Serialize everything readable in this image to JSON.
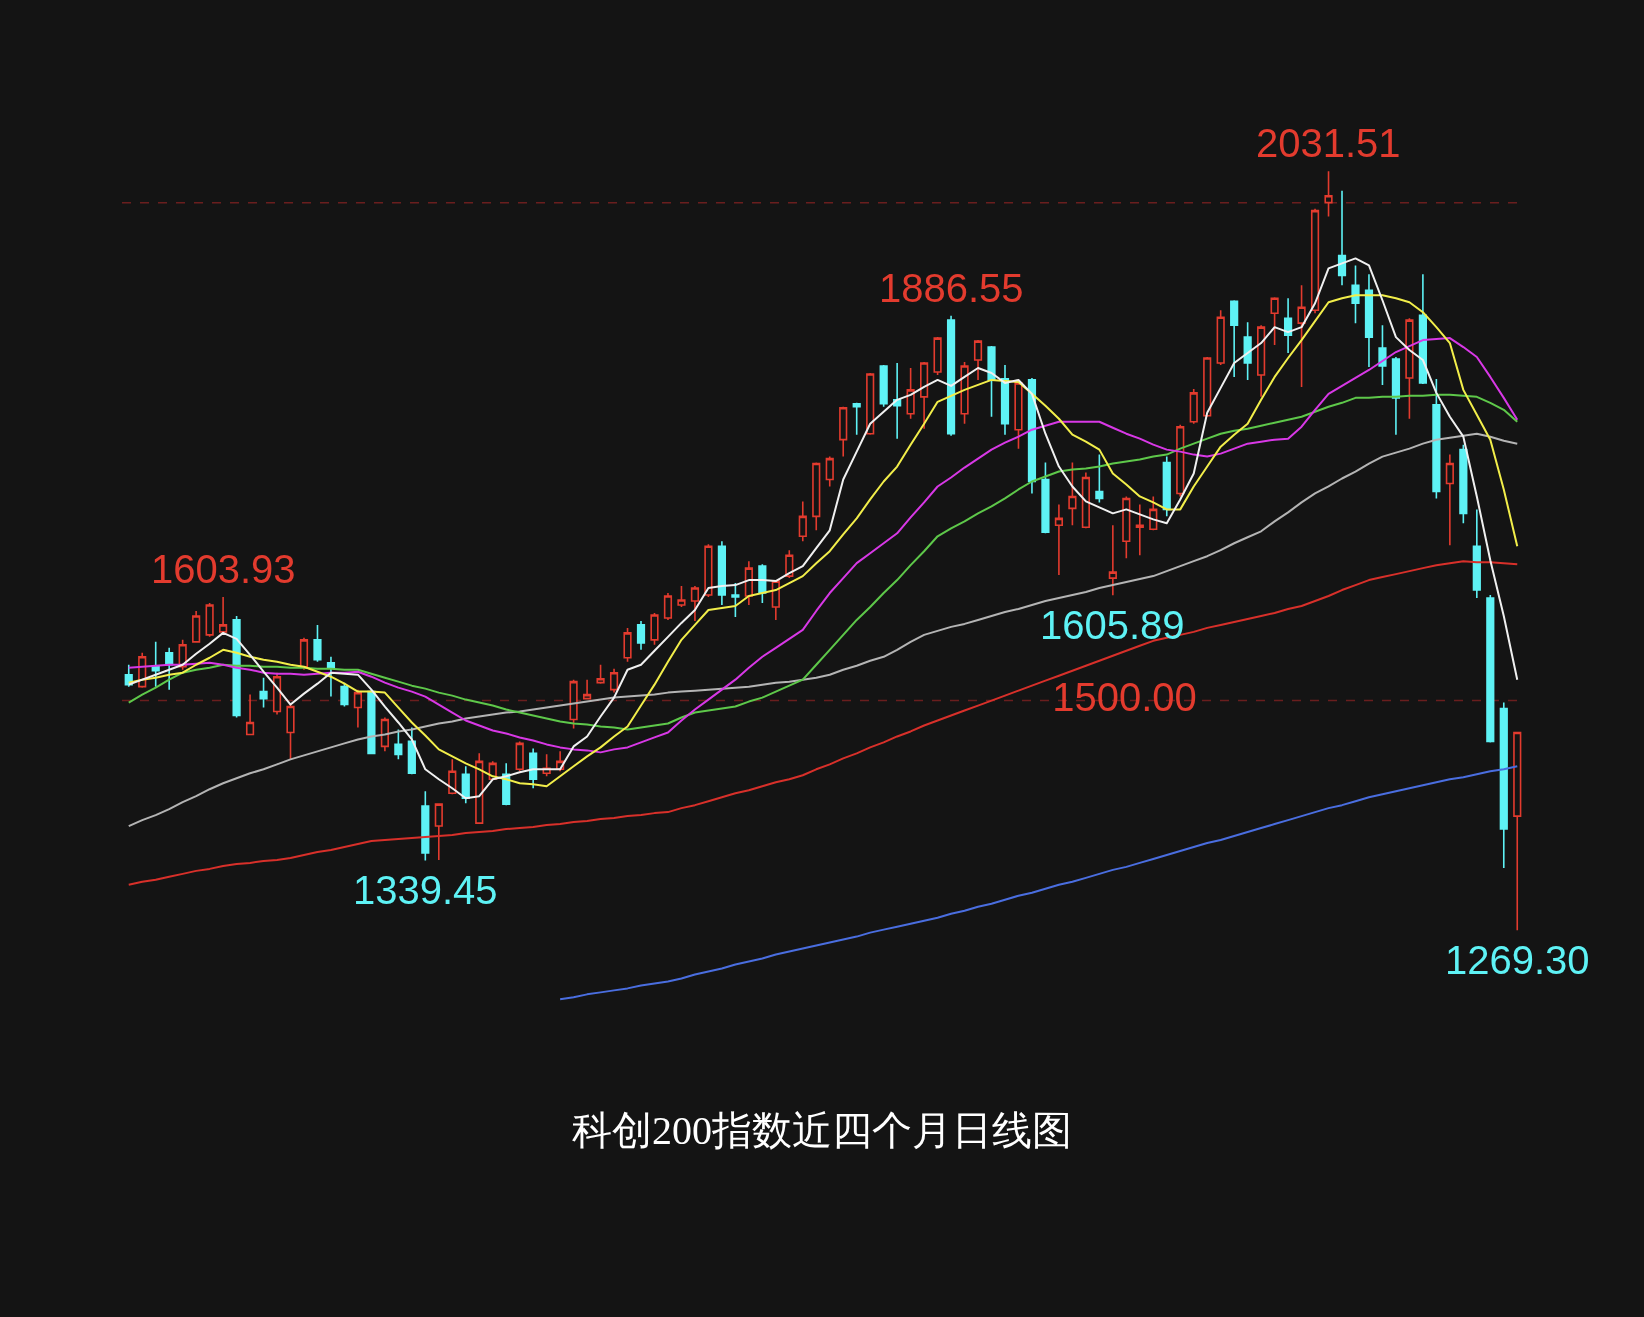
{
  "chart_data": {
    "type": "candlestick",
    "title": "科创200指数近四个月日线图",
    "categories": [
      null,
      null,
      null,
      null,
      null,
      null,
      null,
      null,
      null,
      null,
      null,
      null,
      null,
      null,
      null,
      null,
      null,
      null,
      null,
      null,
      null,
      null,
      null,
      null,
      null,
      null,
      null,
      null,
      null,
      null,
      null,
      null,
      null,
      null,
      null,
      null,
      null,
      null,
      null,
      null,
      null,
      null,
      null,
      null,
      null,
      null,
      null,
      null,
      null,
      null,
      null,
      null,
      null,
      null,
      null,
      null,
      null,
      null,
      null,
      null,
      null,
      null,
      null,
      null,
      null,
      null,
      null,
      null,
      null,
      null,
      null,
      null,
      null,
      null,
      null,
      null,
      null,
      null,
      null,
      null,
      null,
      null,
      null,
      null,
      null,
      null,
      null,
      null,
      null,
      null,
      null,
      null,
      null,
      null,
      null,
      null,
      null,
      null,
      null,
      null,
      null,
      null,
      null,
      null
    ],
    "ohlc": [
      [
        1526,
        1536,
        1514,
        1516
      ],
      [
        1514,
        1548,
        1513,
        1544
      ],
      [
        1535,
        1559,
        1514,
        1530
      ],
      [
        1548,
        1553,
        1511,
        1536
      ],
      [
        1534,
        1561,
        1531,
        1556
      ],
      [
        1559,
        1590,
        1558,
        1585
      ],
      [
        1566,
        1598,
        1564,
        1596
      ],
      [
        1569,
        1603.93,
        1566,
        1576
      ],
      [
        1581,
        1585,
        1483,
        1485
      ],
      [
        1466,
        1506,
        1466,
        1478
      ],
      [
        1509,
        1523,
        1493,
        1502
      ],
      [
        1489,
        1528,
        1486,
        1524
      ],
      [
        1468,
        1496,
        1441,
        1494
      ],
      [
        1534,
        1563,
        1531,
        1561
      ],
      [
        1561,
        1576,
        1539,
        1541
      ],
      [
        1538,
        1544,
        1504,
        1533
      ],
      [
        1514,
        1518,
        1494,
        1496
      ],
      [
        1493,
        1511,
        1473,
        1508
      ],
      [
        1509,
        1511,
        1446,
        1447
      ],
      [
        1454,
        1483,
        1449,
        1481
      ],
      [
        1456,
        1471,
        1441,
        1446
      ],
      [
        1459,
        1473,
        1426,
        1427
      ],
      [
        1394,
        1409,
        1339.45,
        1347
      ],
      [
        1374,
        1397,
        1340,
        1396
      ],
      [
        1407,
        1441,
        1406,
        1429
      ],
      [
        1426,
        1434,
        1397,
        1402
      ],
      [
        1377,
        1447,
        1376,
        1439
      ],
      [
        1421,
        1439,
        1420,
        1437
      ],
      [
        1426,
        1437,
        1395,
        1396
      ],
      [
        1431,
        1459,
        1429,
        1457
      ],
      [
        1447,
        1452,
        1412,
        1421
      ],
      [
        1427,
        1446,
        1424,
        1432
      ],
      [
        1431,
        1449,
        1429,
        1439
      ],
      [
        1481,
        1521,
        1472,
        1519
      ],
      [
        1502,
        1521,
        1501,
        1506
      ],
      [
        1518,
        1536,
        1517,
        1522
      ],
      [
        1511,
        1532,
        1508,
        1528
      ],
      [
        1543,
        1573,
        1539,
        1568
      ],
      [
        1576,
        1580,
        1551,
        1558
      ],
      [
        1561,
        1588,
        1556,
        1586
      ],
      [
        1583,
        1608,
        1581,
        1605
      ],
      [
        1596,
        1615,
        1594,
        1601
      ],
      [
        1600,
        1615,
        1580,
        1613
      ],
      [
        1606,
        1657,
        1604,
        1655
      ],
      [
        1655,
        1660,
        1596,
        1606
      ],
      [
        1606,
        1618,
        1584,
        1604
      ],
      [
        1605,
        1640,
        1596,
        1633
      ],
      [
        1635,
        1637,
        1598,
        1608
      ],
      [
        1594,
        1621,
        1581,
        1620
      ],
      [
        1625,
        1651,
        1623,
        1646
      ],
      [
        1665,
        1700,
        1660,
        1685
      ],
      [
        1685,
        1739,
        1671,
        1738
      ],
      [
        1722,
        1745,
        1715,
        1743
      ],
      [
        1762,
        1795,
        1745,
        1794
      ],
      [
        1798,
        1799,
        1767,
        1795
      ],
      [
        1768,
        1829,
        1767,
        1828
      ],
      [
        1836,
        1837,
        1795,
        1798
      ],
      [
        1802,
        1839,
        1763,
        1796
      ],
      [
        1788,
        1834,
        1783,
        1812
      ],
      [
        1805,
        1840,
        1773,
        1839
      ],
      [
        1830,
        1865,
        1827,
        1864
      ],
      [
        1882,
        1886.55,
        1766,
        1768
      ],
      [
        1788,
        1840,
        1778,
        1836
      ],
      [
        1842,
        1862,
        1822,
        1861
      ],
      [
        1855,
        1856,
        1785,
        1822
      ],
      [
        1823,
        1837,
        1767,
        1778
      ],
      [
        1772,
        1822,
        1753,
        1819
      ],
      [
        1822,
        1824,
        1708,
        1720
      ],
      [
        1722,
        1739,
        1668,
        1669
      ],
      [
        1676,
        1697,
        1626,
        1683
      ],
      [
        1693,
        1739,
        1676,
        1705
      ],
      [
        1674,
        1729,
        1673,
        1724
      ],
      [
        1710,
        1747,
        1699,
        1703
      ],
      [
        1623,
        1676,
        1605.89,
        1629
      ],
      [
        1660,
        1705,
        1643,
        1703
      ],
      [
        1674,
        1697,
        1646,
        1676
      ],
      [
        1672,
        1705,
        1671,
        1692
      ],
      [
        1739,
        1745,
        1685,
        1692
      ],
      [
        1708,
        1777,
        1705,
        1775
      ],
      [
        1780,
        1813,
        1778,
        1809
      ],
      [
        1786,
        1845,
        1785,
        1844
      ],
      [
        1839,
        1892,
        1837,
        1885
      ],
      [
        1901,
        1902,
        1825,
        1877
      ],
      [
        1865,
        1880,
        1822,
        1839
      ],
      [
        1827,
        1877,
        1805,
        1875
      ],
      [
        1889,
        1905,
        1857,
        1904
      ],
      [
        1884,
        1904,
        1849,
        1867
      ],
      [
        1879,
        1917,
        1815,
        1895
      ],
      [
        1892,
        1994,
        1889,
        1992
      ],
      [
        2000,
        2031.51,
        1986,
        2007
      ],
      [
        1947,
        2012,
        1917,
        1927
      ],
      [
        1917,
        1937,
        1879,
        1899
      ],
      [
        1912,
        1928,
        1835,
        1865
      ],
      [
        1854,
        1877,
        1817,
        1836
      ],
      [
        1843,
        1845,
        1767,
        1804
      ],
      [
        1824,
        1884,
        1783,
        1882
      ],
      [
        1887,
        1928,
        1818,
        1819
      ],
      [
        1797,
        1823,
        1703,
        1710
      ],
      [
        1718,
        1747,
        1656,
        1738
      ],
      [
        1752,
        1757,
        1678,
        1688
      ],
      [
        1655,
        1692,
        1603,
        1611
      ],
      [
        1603,
        1606,
        1458,
        1459
      ],
      [
        1492,
        1498,
        1332,
        1371
      ],
      [
        1384,
        1468,
        1269.3,
        1468
      ]
    ],
    "colors": [
      "#5ef2f5",
      "#e33b2e",
      "#5ef2f5",
      "#5ef2f5",
      "#e33b2e",
      "#e33b2e",
      "#e33b2e",
      "#e33b2e",
      "#5ef2f5",
      "#e33b2e",
      "#5ef2f5",
      "#e33b2e",
      "#e33b2e",
      "#e33b2e",
      "#5ef2f5",
      "#5ef2f5",
      "#5ef2f5",
      "#e33b2e",
      "#5ef2f5",
      "#e33b2e",
      "#5ef2f5",
      "#5ef2f5",
      "#5ef2f5",
      "#e33b2e",
      "#e33b2e",
      "#5ef2f5",
      "#e33b2e",
      "#e33b2e",
      "#5ef2f5",
      "#e33b2e",
      "#5ef2f5",
      "#e33b2e",
      "#e33b2e",
      "#e33b2e",
      "#e33b2e",
      "#e33b2e",
      "#e33b2e",
      "#e33b2e",
      "#5ef2f5",
      "#e33b2e",
      "#e33b2e",
      "#e33b2e",
      "#e33b2e",
      "#e33b2e",
      "#5ef2f5",
      "#5ef2f5",
      "#e33b2e",
      "#5ef2f5",
      "#e33b2e",
      "#e33b2e",
      "#e33b2e",
      "#e33b2e",
      "#e33b2e",
      "#e33b2e",
      "#5ef2f5",
      "#e33b2e",
      "#5ef2f5",
      "#5ef2f5",
      "#e33b2e",
      "#e33b2e",
      "#e33b2e",
      "#5ef2f5",
      "#e33b2e",
      "#e33b2e",
      "#5ef2f5",
      "#5ef2f5",
      "#e33b2e",
      "#5ef2f5",
      "#5ef2f5",
      "#e33b2e",
      "#e33b2e",
      "#e33b2e",
      "#5ef2f5",
      "#e33b2e",
      "#e33b2e",
      "#e33b2e",
      "#e33b2e",
      "#5ef2f5",
      "#e33b2e",
      "#e33b2e",
      "#e33b2e",
      "#e33b2e",
      "#5ef2f5",
      "#5ef2f5",
      "#e33b2e",
      "#e33b2e",
      "#5ef2f5",
      "#e33b2e",
      "#e33b2e",
      "#e33b2e",
      "#5ef2f5",
      "#5ef2f5",
      "#5ef2f5",
      "#5ef2f5",
      "#5ef2f5",
      "#e33b2e",
      "#5ef2f5",
      "#5ef2f5",
      "#e33b2e",
      "#5ef2f5",
      "#5ef2f5",
      "#5ef2f5",
      "#5ef2f5",
      "#e33b2e"
    ],
    "series": [
      {
        "type": "line",
        "color": "#4a6ee0",
        "values": [
          null,
          null,
          null,
          null,
          null,
          null,
          null,
          null,
          null,
          null,
          null,
          null,
          null,
          null,
          null,
          null,
          null,
          null,
          null,
          null,
          null,
          null,
          null,
          null,
          null,
          null,
          null,
          null,
          null,
          null,
          null,
          null,
          1200,
          1202,
          1205,
          1207,
          1209,
          1211,
          1214,
          1216,
          1218,
          1221,
          1225,
          1228,
          1231,
          1235,
          1238,
          1241,
          1245,
          1248,
          1251,
          1254,
          1257,
          1260,
          1263,
          1267,
          1270,
          1273,
          1276,
          1279,
          1282,
          1286,
          1289,
          1293,
          1296,
          1300,
          1304,
          1307,
          1311,
          1315,
          1318,
          1322,
          1326,
          1330,
          1333,
          1337,
          1341,
          1345,
          1349,
          1353,
          1357,
          1360,
          1364,
          1368,
          1372,
          1376,
          1380,
          1384,
          1388,
          1392,
          1395,
          1399,
          1403,
          1406,
          1409,
          1412,
          1415,
          1418,
          1421,
          1423,
          1426,
          1429,
          1431,
          1434
        ]
      },
      {
        "type": "line",
        "color": "#d8302a",
        "values": [
          1315,
          1318,
          1320,
          1323,
          1326,
          1329,
          1331,
          1334,
          1336,
          1337,
          1339,
          1340,
          1342,
          1345,
          1348,
          1350,
          1353,
          1356,
          1359,
          1360,
          1361,
          1362,
          1363,
          1364,
          1365,
          1367,
          1368,
          1369,
          1371,
          1372,
          1373,
          1375,
          1376,
          1378,
          1379,
          1381,
          1382,
          1384,
          1385,
          1387,
          1388,
          1392,
          1395,
          1399,
          1403,
          1407,
          1410,
          1414,
          1418,
          1421,
          1425,
          1431,
          1436,
          1442,
          1447,
          1453,
          1458,
          1464,
          1469,
          1475,
          1480,
          1485,
          1490,
          1495,
          1500,
          1505,
          1510,
          1515,
          1520,
          1525,
          1530,
          1535,
          1540,
          1545,
          1550,
          1555,
          1560,
          1563,
          1566,
          1569,
          1573,
          1576,
          1579,
          1582,
          1585,
          1588,
          1592,
          1595,
          1600,
          1605,
          1611,
          1616,
          1621,
          1624,
          1627,
          1630,
          1633,
          1636,
          1638,
          1640,
          1639,
          1639,
          1638,
          1637
        ]
      },
      {
        "type": "line",
        "color": "#b4b4b4",
        "values": [
          1374,
          1380,
          1385,
          1391,
          1398,
          1404,
          1411,
          1417,
          1422,
          1427,
          1431,
          1436,
          1441,
          1445,
          1449,
          1453,
          1457,
          1461,
          1464,
          1466,
          1469,
          1471,
          1474,
          1477,
          1479,
          1482,
          1484,
          1486,
          1488,
          1489,
          1491,
          1493,
          1495,
          1497,
          1499,
          1501,
          1503,
          1504,
          1505,
          1506,
          1508,
          1509,
          1510,
          1511,
          1512,
          1513,
          1514,
          1516,
          1518,
          1519,
          1521,
          1523,
          1526,
          1531,
          1535,
          1540,
          1544,
          1551,
          1559,
          1566,
          1570,
          1574,
          1577,
          1581,
          1585,
          1589,
          1592,
          1596,
          1600,
          1603,
          1606,
          1609,
          1613,
          1616,
          1619,
          1622,
          1625,
          1630,
          1635,
          1640,
          1645,
          1651,
          1658,
          1664,
          1670,
          1680,
          1689,
          1699,
          1708,
          1715,
          1723,
          1730,
          1738,
          1745,
          1749,
          1753,
          1758,
          1762,
          1764,
          1766,
          1768,
          1765,
          1761,
          1758
        ]
      },
      {
        "type": "line",
        "color": "#5ec84a",
        "values": [
          1498,
          1506,
          1513,
          1521,
          1528,
          1531,
          1533,
          1536,
          1535,
          1535,
          1534,
          1534,
          1533,
          1533,
          1532,
          1532,
          1531,
          1531,
          1527,
          1523,
          1519,
          1515,
          1512,
          1508,
          1505,
          1501,
          1498,
          1495,
          1491,
          1488,
          1485,
          1482,
          1479,
          1477,
          1476,
          1474,
          1473,
          1471,
          1473,
          1475,
          1477,
          1483,
          1488,
          1490,
          1492,
          1494,
          1499,
          1503,
          1509,
          1515,
          1521,
          1536,
          1551,
          1566,
          1581,
          1594,
          1608,
          1621,
          1636,
          1650,
          1665,
          1673,
          1680,
          1688,
          1695,
          1703,
          1712,
          1720,
          1725,
          1730,
          1732,
          1733,
          1735,
          1738,
          1740,
          1742,
          1745,
          1747,
          1753,
          1758,
          1763,
          1768,
          1771,
          1773,
          1776,
          1779,
          1782,
          1785,
          1790,
          1795,
          1799,
          1804,
          1804,
          1805,
          1805,
          1806,
          1806,
          1807,
          1807,
          1806,
          1805,
          1799,
          1792,
          1780
        ]
      },
      {
        "type": "line",
        "color": "#d838e6",
        "values": [
          1533,
          1534,
          1535,
          1536,
          1536,
          1537,
          1538,
          1536,
          1533,
          1531,
          1528,
          1527,
          1527,
          1526,
          1527,
          1528,
          1528,
          1529,
          1524,
          1518,
          1513,
          1509,
          1504,
          1496,
          1488,
          1480,
          1475,
          1470,
          1467,
          1463,
          1460,
          1456,
          1453,
          1451,
          1450,
          1448,
          1451,
          1453,
          1458,
          1463,
          1468,
          1480,
          1491,
          1501,
          1511,
          1521,
          1533,
          1544,
          1553,
          1562,
          1571,
          1590,
          1608,
          1623,
          1638,
          1648,
          1658,
          1668,
          1684,
          1699,
          1715,
          1724,
          1734,
          1743,
          1752,
          1759,
          1765,
          1772,
          1776,
          1780,
          1780,
          1780,
          1780,
          1774,
          1768,
          1763,
          1757,
          1752,
          1750,
          1747,
          1745,
          1748,
          1753,
          1758,
          1760,
          1762,
          1763,
          1775,
          1792,
          1808,
          1816,
          1824,
          1832,
          1841,
          1850,
          1856,
          1862,
          1863,
          1864,
          1855,
          1845,
          1825,
          1804,
          1782
        ]
      },
      {
        "type": "line",
        "color": "#f2ee4a",
        "values": [
          1518,
          1521,
          1523,
          1526,
          1528,
          1536,
          1543,
          1551,
          1548,
          1544,
          1541,
          1539,
          1536,
          1534,
          1529,
          1524,
          1517,
          1509,
          1509,
          1508,
          1493,
          1478,
          1465,
          1451,
          1444,
          1437,
          1431,
          1424,
          1421,
          1417,
          1416,
          1414,
          1424,
          1434,
          1444,
          1453,
          1464,
          1474,
          1495,
          1516,
          1539,
          1561,
          1576,
          1591,
          1593,
          1595,
          1605,
          1608,
          1611,
          1618,
          1625,
          1638,
          1650,
          1667,
          1683,
          1702,
          1720,
          1735,
          1757,
          1778,
          1800,
          1806,
          1812,
          1817,
          1822,
          1821,
          1820,
          1808,
          1796,
          1783,
          1767,
          1760,
          1752,
          1728,
          1717,
          1705,
          1699,
          1692,
          1692,
          1715,
          1735,
          1755,
          1767,
          1778,
          1802,
          1825,
          1844,
          1862,
          1881,
          1900,
          1904,
          1907,
          1907,
          1907,
          1904,
          1900,
          1890,
          1875,
          1859,
          1812,
          1787,
          1762,
          1712,
          1655
        ]
      },
      {
        "type": "line",
        "color": "#f0f0f0",
        "values": [
          1516,
          1521,
          1526,
          1531,
          1536,
          1547,
          1557,
          1568,
          1562,
          1546,
          1529,
          1513,
          1496,
          1507,
          1517,
          1528,
          1527,
          1526,
          1511,
          1494,
          1478,
          1461,
          1431,
          1421,
          1412,
          1402,
          1404,
          1421,
          1424,
          1428,
          1431,
          1431,
          1431,
          1454,
          1464,
          1484,
          1503,
          1531,
          1536,
          1550,
          1564,
          1578,
          1591,
          1613,
          1615,
          1616,
          1621,
          1621,
          1620,
          1628,
          1635,
          1653,
          1671,
          1722,
          1750,
          1778,
          1790,
          1802,
          1807,
          1815,
          1822,
          1816,
          1825,
          1834,
          1829,
          1819,
          1822,
          1808,
          1768,
          1735,
          1715,
          1700,
          1694,
          1688,
          1692,
          1687,
          1682,
          1678,
          1702,
          1728,
          1789,
          1814,
          1839,
          1849,
          1859,
          1875,
          1870,
          1875,
          1899,
          1934,
          1939,
          1944,
          1937,
          1902,
          1865,
          1852,
          1842,
          1809,
          1785,
          1765,
          1705,
          1641,
          1585,
          1521
        ]
      }
    ],
    "annotations": [
      {
        "text": "1603.93",
        "y": 1603.93
      },
      {
        "text": "1339.45",
        "y": 1339.45
      },
      {
        "text": "1886.55",
        "y": 1886.55
      },
      {
        "text": "1605.89",
        "y": 1605.89
      },
      {
        "text": "2031.51",
        "y": 2031.51
      },
      {
        "text": "1269.30",
        "y": 1269.3
      }
    ],
    "ref_lines": [
      {
        "axis": "y",
        "value": 1500,
        "label": "1500.00",
        "color": "#6a1e1e",
        "line_style": "dashed"
      },
      {
        "axis": "y",
        "value": 2000,
        "color": "#6a1e1e",
        "line_style": "dashed"
      }
    ],
    "tick_labels": false
  }
}
